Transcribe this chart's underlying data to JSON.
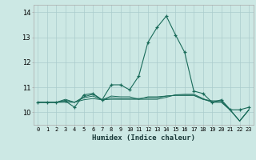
{
  "xlabel": "Humidex (Indice chaleur)",
  "background_color": "#cce8e4",
  "grid_color": "#aacccc",
  "line_color": "#1a6b5a",
  "xlim": [
    -0.5,
    23.5
  ],
  "ylim": [
    9.5,
    14.3
  ],
  "yticks": [
    10,
    11,
    12,
    13,
    14
  ],
  "xticks": [
    0,
    1,
    2,
    3,
    4,
    5,
    6,
    7,
    8,
    9,
    10,
    11,
    12,
    13,
    14,
    15,
    16,
    17,
    18,
    19,
    20,
    21,
    22,
    23
  ],
  "series": [
    [
      10.4,
      10.4,
      10.4,
      10.45,
      10.2,
      10.7,
      10.75,
      10.5,
      11.1,
      11.1,
      10.9,
      11.45,
      12.8,
      13.4,
      13.85,
      13.1,
      12.4,
      10.85,
      10.75,
      10.4,
      10.5,
      10.1,
      10.1,
      10.2
    ],
    [
      10.4,
      10.4,
      10.4,
      10.4,
      10.4,
      10.5,
      10.55,
      10.5,
      10.52,
      10.52,
      10.52,
      10.52,
      10.52,
      10.52,
      10.6,
      10.7,
      10.72,
      10.72,
      10.55,
      10.4,
      10.4,
      10.08,
      9.65,
      10.1
    ],
    [
      10.4,
      10.4,
      10.4,
      10.48,
      10.4,
      10.58,
      10.65,
      10.5,
      10.58,
      10.55,
      10.55,
      10.55,
      10.58,
      10.58,
      10.65,
      10.68,
      10.68,
      10.68,
      10.52,
      10.42,
      10.42,
      10.08,
      9.65,
      10.1
    ],
    [
      10.4,
      10.4,
      10.4,
      10.52,
      10.4,
      10.62,
      10.72,
      10.5,
      10.65,
      10.62,
      10.62,
      10.52,
      10.62,
      10.62,
      10.65,
      10.68,
      10.68,
      10.68,
      10.52,
      10.46,
      10.46,
      10.08,
      9.65,
      10.1
    ]
  ]
}
